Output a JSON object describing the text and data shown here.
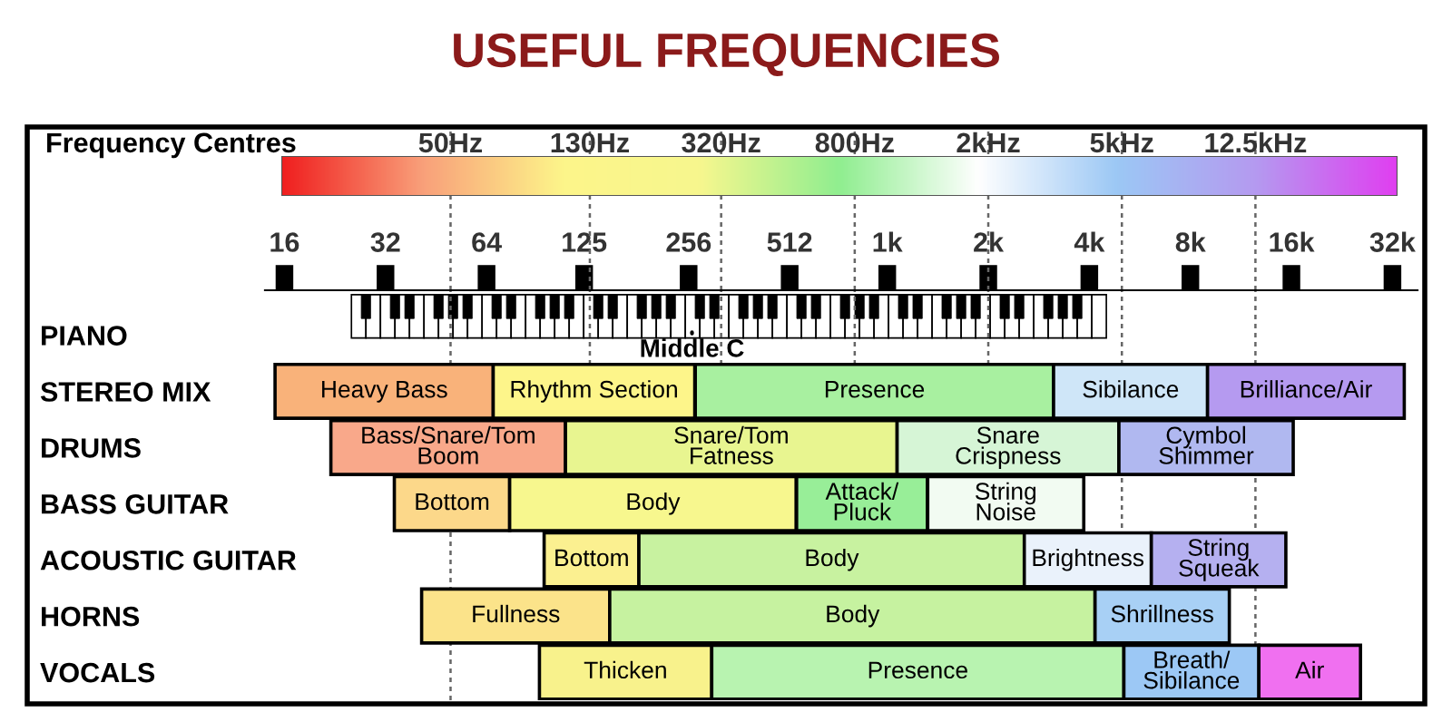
{
  "chart_data": {
    "type": "bar",
    "orientation": "horizontal",
    "title": "USEFUL FREQUENCIES",
    "categories": [
      "PIANO",
      "STEREO MIX",
      "DRUMS",
      "BASS GUITAR",
      "ACOUSTIC GUITAR",
      "HORNS",
      "VOCALS"
    ],
    "series": [
      {
        "base": [
          null,
          15,
          22,
          34,
          95,
          41,
          92
        ],
        "values": [
          null,
          52,
          88,
          41,
          87,
          108,
          208
        ],
        "colors": [
          null,
          "#f9b27a",
          "#f9a88a",
          "#fcd88a",
          "#fbf090",
          "#fbe38a",
          "#f8f28c"
        ],
        "value_labels": [
          null,
          "Heavy Bass",
          "Bass/Snare/Tom\nBoom",
          "Bottom",
          "Bottom",
          "Fullness",
          "Thicken"
        ]
      },
      {
        "base": [
          null,
          67,
          110,
          75,
          182,
          149,
          300
        ],
        "values": [
          null,
          200,
          960,
          460,
          2380,
          4010,
          4770
        ],
        "colors": [
          null,
          "#fdf58a",
          "#e8f590",
          "#f7f78e",
          "#c8f2a0",
          "#c6f2a0",
          "#b8f3b0"
        ],
        "value_labels": [
          null,
          "Rhythm Section",
          "Snare/Tom\nFatness",
          "Body",
          "Body",
          "Body",
          "Presence"
        ]
      },
      {
        "base": [
          null,
          268,
          1070,
          537,
          2560,
          4160,
          5070
        ],
        "values": [
          null,
          2860,
          3830,
          780,
          3560,
          6290,
          7730
        ],
        "colors": [
          null,
          "#a8f0a0",
          "#d6f5d6",
          "#98ee98",
          "#eaf2fb",
          "#a8d0f5",
          "#9cc8f5"
        ],
        "value_labels": [
          null,
          "Presence",
          "Snare\nCrispness",
          "Attack/\nPluck",
          "Brightness",
          "Shrillness",
          "Breath/\nSibilance"
        ]
      },
      {
        "base": [
          null,
          3130,
          4900,
          1320,
          6120,
          null,
          12800
        ],
        "values": [
          null,
          5870,
          11300,
          2530,
          9280,
          null,
          12900
        ],
        "colors": [
          null,
          "#cfe6f8",
          "#b0b8f0",
          "#f2fbf2",
          "#b5b0f0",
          null,
          "#f070f0"
        ],
        "value_labels": [
          null,
          "Sibilance",
          "Cymbol\nShimmer",
          "String\nNoise",
          "String\nSqueak",
          null,
          "Air"
        ]
      },
      {
        "base": [
          null,
          9000,
          null,
          null,
          null,
          null,
          null
        ],
        "values": [
          null,
          25700,
          null,
          null,
          null,
          null,
          null
        ],
        "colors": [
          null,
          "#b59af0",
          null,
          null,
          null,
          null,
          null
        ],
        "value_labels": [
          null,
          "Brilliance/Air",
          null,
          null,
          null,
          null,
          null
        ]
      }
    ],
    "log": "x",
    "xlim": [
      14,
      38000
    ],
    "xticks": [
      16,
      32,
      64,
      125,
      256,
      512,
      {
        "value": 1000,
        "label": "1k"
      },
      {
        "value": 2000,
        "label": "2k"
      },
      {
        "value": 4000,
        "label": "4k"
      },
      {
        "value": 8000,
        "label": "8k"
      },
      {
        "value": 16000,
        "label": "16k"
      },
      {
        "value": 32000,
        "label": "32k"
      }
    ],
    "ref_lines": [
      {
        "axis": "x",
        "value": 50,
        "label": "50Hz",
        "line_style": "dotted"
      },
      {
        "axis": "x",
        "value": 130,
        "label": "130Hz",
        "line_style": "dotted"
      },
      {
        "axis": "x",
        "value": 320,
        "label": "320Hz",
        "line_style": "dotted"
      },
      {
        "axis": "x",
        "value": 800,
        "label": "800Hz",
        "line_style": "dotted"
      },
      {
        "axis": "x",
        "value": 2000,
        "label": "2kHz",
        "line_style": "dotted"
      },
      {
        "axis": "x",
        "value": 5000,
        "label": "5kHz",
        "line_style": "dotted"
      },
      {
        "axis": "x",
        "value": 12500,
        "label": "12.5kHz",
        "line_style": "dotted"
      }
    ],
    "annotations": [
      "Frequency Centres",
      {
        "text": "Middle C",
        "x": 262,
        "y": "PIANO"
      }
    ],
    "grid": false,
    "legend": false
  }
}
